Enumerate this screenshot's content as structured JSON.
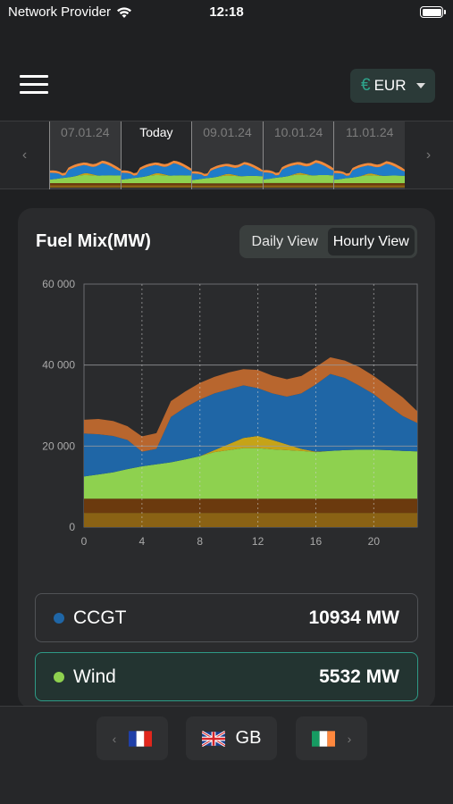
{
  "status": {
    "carrier": "Network Provider",
    "time": "12:18"
  },
  "header": {
    "currency_symbol": "€",
    "currency": "EUR"
  },
  "timeline": {
    "days": [
      {
        "label": "07.01.24",
        "today": false
      },
      {
        "label": "Today",
        "today": true
      },
      {
        "label": "09.01.24",
        "today": false
      },
      {
        "label": "10.01.24",
        "today": false
      },
      {
        "label": "11.01.24",
        "today": false
      }
    ],
    "prev_icon": "chevron-left-icon",
    "next_icon": "chevron-right-icon"
  },
  "card": {
    "title": "Fuel Mix(MW)",
    "daily_label": "Daily View",
    "hourly_label": "Hourly View",
    "selected_view": "Hourly View"
  },
  "chart_data": {
    "type": "area",
    "x": [
      0,
      1,
      2,
      3,
      4,
      5,
      6,
      7,
      8,
      9,
      10,
      11,
      12,
      13,
      14,
      15,
      16,
      17,
      18,
      19,
      20,
      21,
      22,
      23
    ],
    "xticks": [
      "0",
      "4",
      "8",
      "12",
      "16",
      "20"
    ],
    "yticks": [
      "0",
      "20 000",
      "40 000",
      "60 000"
    ],
    "ylim": [
      0,
      60000
    ],
    "grid": true,
    "colors": {
      "base1": "#8a6214",
      "base2": "#6b3a0e",
      "wind": "#8ed14f",
      "solar": "#c6a318",
      "ccgt": "#1f66a6",
      "other": "#b8662e"
    },
    "series": [
      {
        "name": "",
        "values": [
          3500,
          3500,
          3500,
          3500,
          3500,
          3500,
          3500,
          3500,
          3500,
          3500,
          3500,
          3500,
          3500,
          3500,
          3500,
          3500,
          3500,
          3500,
          3500,
          3500,
          3500,
          3500,
          3500,
          3500
        ]
      },
      {
        "name": "",
        "values": [
          3500,
          3500,
          3500,
          3500,
          3500,
          3500,
          3500,
          3500,
          3500,
          3500,
          3500,
          3500,
          3500,
          3500,
          3500,
          3500,
          3500,
          3500,
          3500,
          3500,
          3500,
          3500,
          3500,
          3500
        ]
      },
      {
        "name": "Wind",
        "values": [
          5500,
          6000,
          6500,
          7300,
          8000,
          8500,
          9000,
          9700,
          10500,
          11500,
          12000,
          12500,
          12500,
          12200,
          12000,
          11800,
          11500,
          11800,
          12000,
          12100,
          12100,
          12000,
          11800,
          11700
        ]
      },
      {
        "name": "",
        "values": [
          0,
          0,
          0,
          0,
          0,
          0,
          0,
          0,
          0,
          500,
          1500,
          2500,
          3000,
          2300,
          1400,
          500,
          100,
          0,
          0,
          0,
          0,
          0,
          0,
          0
        ]
      },
      {
        "name": "CCGT",
        "values": [
          10600,
          9900,
          9000,
          7200,
          3600,
          3800,
          11200,
          12900,
          14000,
          14000,
          13500,
          13000,
          11800,
          11500,
          11800,
          13700,
          16600,
          19000,
          17800,
          15800,
          13700,
          11000,
          8600,
          7000
        ]
      },
      {
        "name": "",
        "values": [
          3400,
          3800,
          3700,
          3400,
          3800,
          3900,
          3900,
          3900,
          4100,
          4100,
          4200,
          4000,
          4500,
          4400,
          4300,
          4300,
          4300,
          4100,
          4300,
          4600,
          4500,
          4700,
          4600,
          2900
        ]
      }
    ]
  },
  "legend": [
    {
      "name": "CCGT",
      "value": "10934 MW",
      "color": "#1f66a6"
    },
    {
      "name": "Wind",
      "value": "5532 MW",
      "color": "#8ed14f"
    }
  ],
  "countries": {
    "prev_label": "",
    "current": "GB",
    "prev_flag": "france-flag-icon",
    "current_flag": "uk-flag-icon",
    "next_flag": "ireland-flag-icon"
  }
}
